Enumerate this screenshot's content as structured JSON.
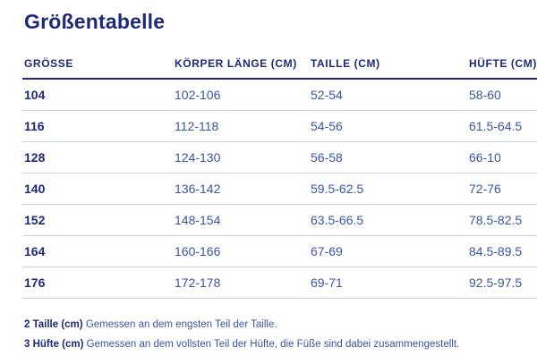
{
  "page": {
    "title": "Größentabelle"
  },
  "chart_data": {
    "type": "table",
    "title": "Größentabelle",
    "columns": [
      "GRÖSSE",
      "KÖRPER LÄNGE (CM)",
      "TAILLE (CM)",
      "HÜFTE (CM)"
    ],
    "rows": [
      [
        "104",
        "102-106",
        "52-54",
        "58-60"
      ],
      [
        "116",
        "112-118",
        "54-56",
        "61.5-64.5"
      ],
      [
        "128",
        "124-130",
        "56-58",
        "66-10"
      ],
      [
        "140",
        "136-142",
        "59.5-62.5",
        "72-76"
      ],
      [
        "152",
        "148-154",
        "63.5-66.5",
        "78.5-82.5"
      ],
      [
        "164",
        "160-166",
        "67-69",
        "84.5-89.5"
      ],
      [
        "176",
        "172-178",
        "69-71",
        "92.5-97.5"
      ]
    ]
  },
  "notes": [
    {
      "label": "2 Taille (cm)",
      "text": "Gemessen an dem engsten Teil der Taille."
    },
    {
      "label": "3 Hüfte (cm)",
      "text": "Gemessen an dem vollsten Teil der Hüfte, die Füße sind dabei zusammengestellt."
    }
  ],
  "colors": {
    "navy": "#1e2a78",
    "blue": "#3a55a4",
    "divider": "#c7cfe2"
  }
}
